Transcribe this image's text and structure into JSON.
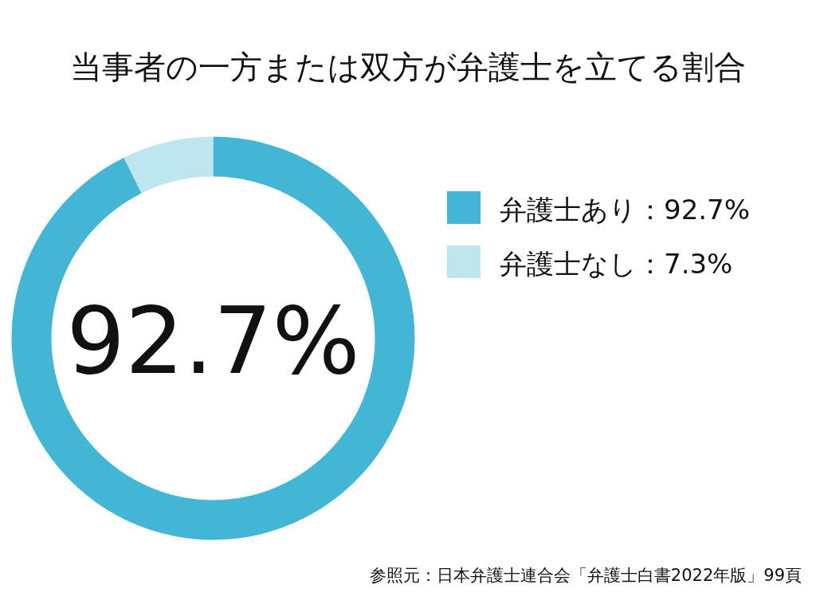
{
  "chart_data": {
    "type": "donut",
    "title": "当事者の一方または双方が弁護士を立てる割合",
    "categories": [
      "弁護士あり：92.7%",
      "弁護士なし：7.3%"
    ],
    "values": [
      92.7,
      7.3
    ],
    "colors": [
      "#43b6d5",
      "#bde6ee"
    ],
    "legend": "right",
    "annotations": [
      "92.7%",
      "参照元：日本弁護士連合会「弁護士白書2022年版」99頁"
    ]
  }
}
